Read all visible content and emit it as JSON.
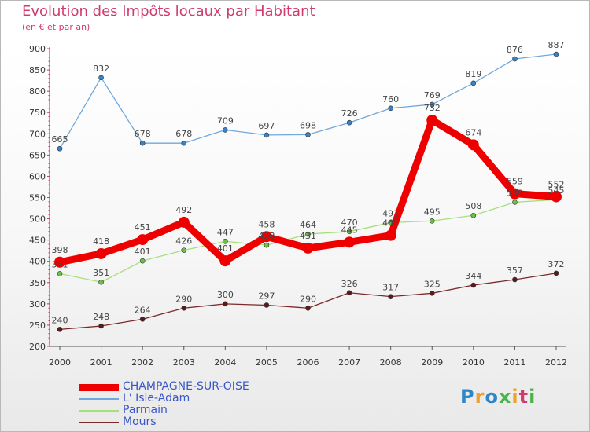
{
  "title": "Evolution des Impôts locaux par Habitant",
  "subtitle": "(en € et par an)",
  "logo_text": "Proxiti",
  "chart_data": {
    "type": "line",
    "title": "Evolution des Impôts locaux par Habitant",
    "subtitle": "(en € et par an)",
    "x": [
      "2000",
      "2001",
      "2002",
      "2003",
      "2004",
      "2005",
      "2006",
      "2007",
      "2008",
      "2009",
      "2010",
      "2011",
      "2012"
    ],
    "ylim": [
      200,
      900
    ],
    "yticks": [
      200,
      250,
      300,
      350,
      400,
      450,
      500,
      550,
      600,
      650,
      700,
      750,
      800,
      850,
      900
    ],
    "grid": false,
    "legend_position": "bottom-left",
    "series": [
      {
        "name": "CHAMPAGNE-SUR-OISE",
        "color": "#ee0000",
        "values": [
          398,
          418,
          451,
          492,
          401,
          458,
          431,
          445,
          461,
          732,
          674,
          559,
          552
        ]
      },
      {
        "name": "L' Isle-Adam",
        "color": "#6fa8dc",
        "values": [
          665,
          832,
          678,
          678,
          709,
          697,
          698,
          726,
          760,
          769,
          819,
          876,
          887
        ]
      },
      {
        "name": "Parmain",
        "color": "#a6e07a",
        "values": [
          371,
          351,
          401,
          426,
          447,
          438,
          464,
          470,
          491,
          495,
          508,
          539,
          545
        ]
      },
      {
        "name": "Mours",
        "color": "#7a2a2a",
        "values": [
          240,
          248,
          264,
          290,
          300,
          297,
          290,
          326,
          317,
          325,
          344,
          357,
          372
        ]
      }
    ],
    "labels": [
      [
        "398",
        "418",
        "451",
        "492",
        "401",
        "458",
        "431",
        "445",
        "461",
        "732",
        "674",
        "559",
        "552"
      ],
      [
        "665",
        "832",
        "678",
        "678",
        "709",
        "697",
        "698",
        "726",
        "760",
        "769",
        "819",
        "876",
        "887"
      ],
      [
        "371",
        "351",
        "401",
        "426",
        "447",
        "438",
        "464",
        "470",
        "491",
        "495",
        "508",
        "539",
        "545"
      ],
      [
        "240",
        "248",
        "264",
        "290",
        "300",
        "297",
        "290",
        "326",
        "317",
        "325",
        "344",
        "357",
        "372"
      ]
    ]
  }
}
